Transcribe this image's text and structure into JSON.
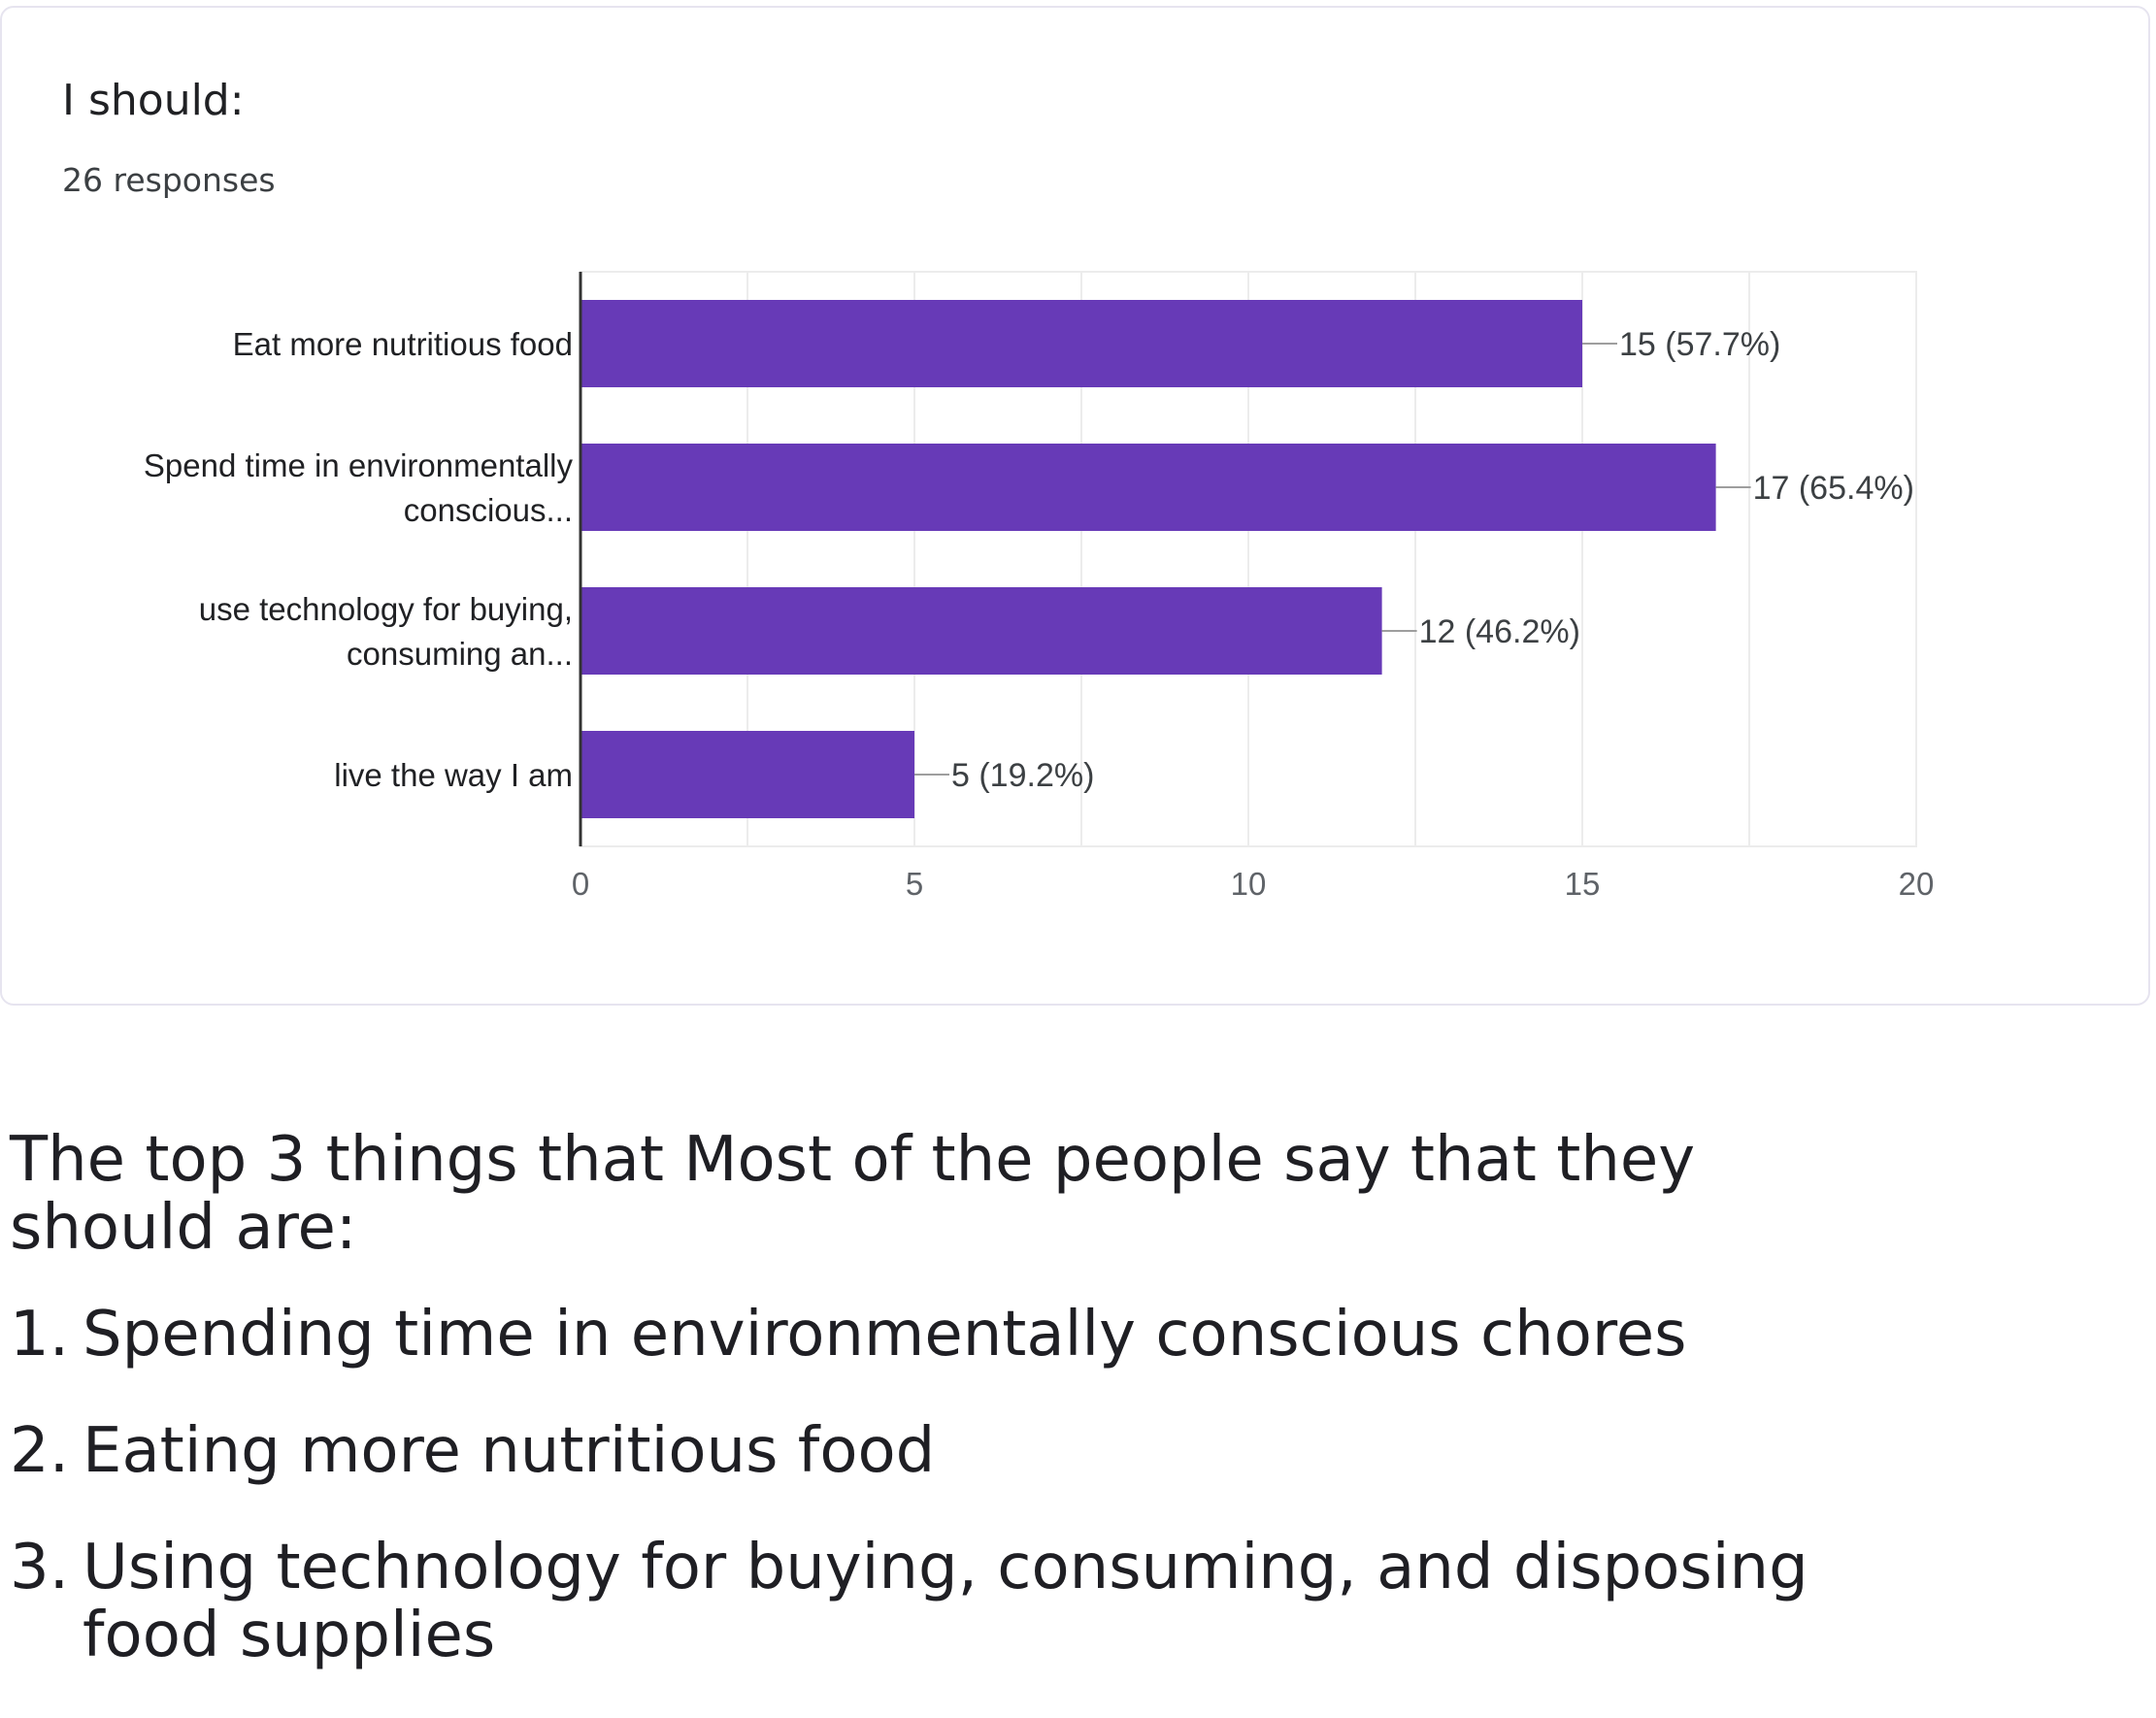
{
  "card": {
    "title": "I should:",
    "subtitle": "26 responses"
  },
  "chart_data": {
    "type": "bar",
    "orientation": "horizontal",
    "categories": [
      [
        "Eat more nutritious food"
      ],
      [
        "Spend time in environmentally",
        "conscious..."
      ],
      [
        "use technology for buying,",
        "consuming an..."
      ],
      [
        "live the way I am"
      ]
    ],
    "values": [
      15,
      17,
      12,
      5
    ],
    "value_labels": [
      "15 (57.7%)",
      "17 (65.4%)",
      "12 (46.2%)",
      "5 (19.2%)"
    ],
    "xlim": [
      0,
      20
    ],
    "xticks": [
      0,
      5,
      10,
      15,
      20
    ],
    "grid": true,
    "bar_color": "#673ab7"
  },
  "summary": {
    "intro": "The top 3 things that Most of the people say that they should are:",
    "items": [
      {
        "number": "1.",
        "text": "Spending time in environmentally conscious chores"
      },
      {
        "number": "2.",
        "text": "Eating more nutritious food"
      },
      {
        "number": "3.",
        "text": "Using technology for buying, consuming, and disposing food supplies"
      }
    ]
  }
}
